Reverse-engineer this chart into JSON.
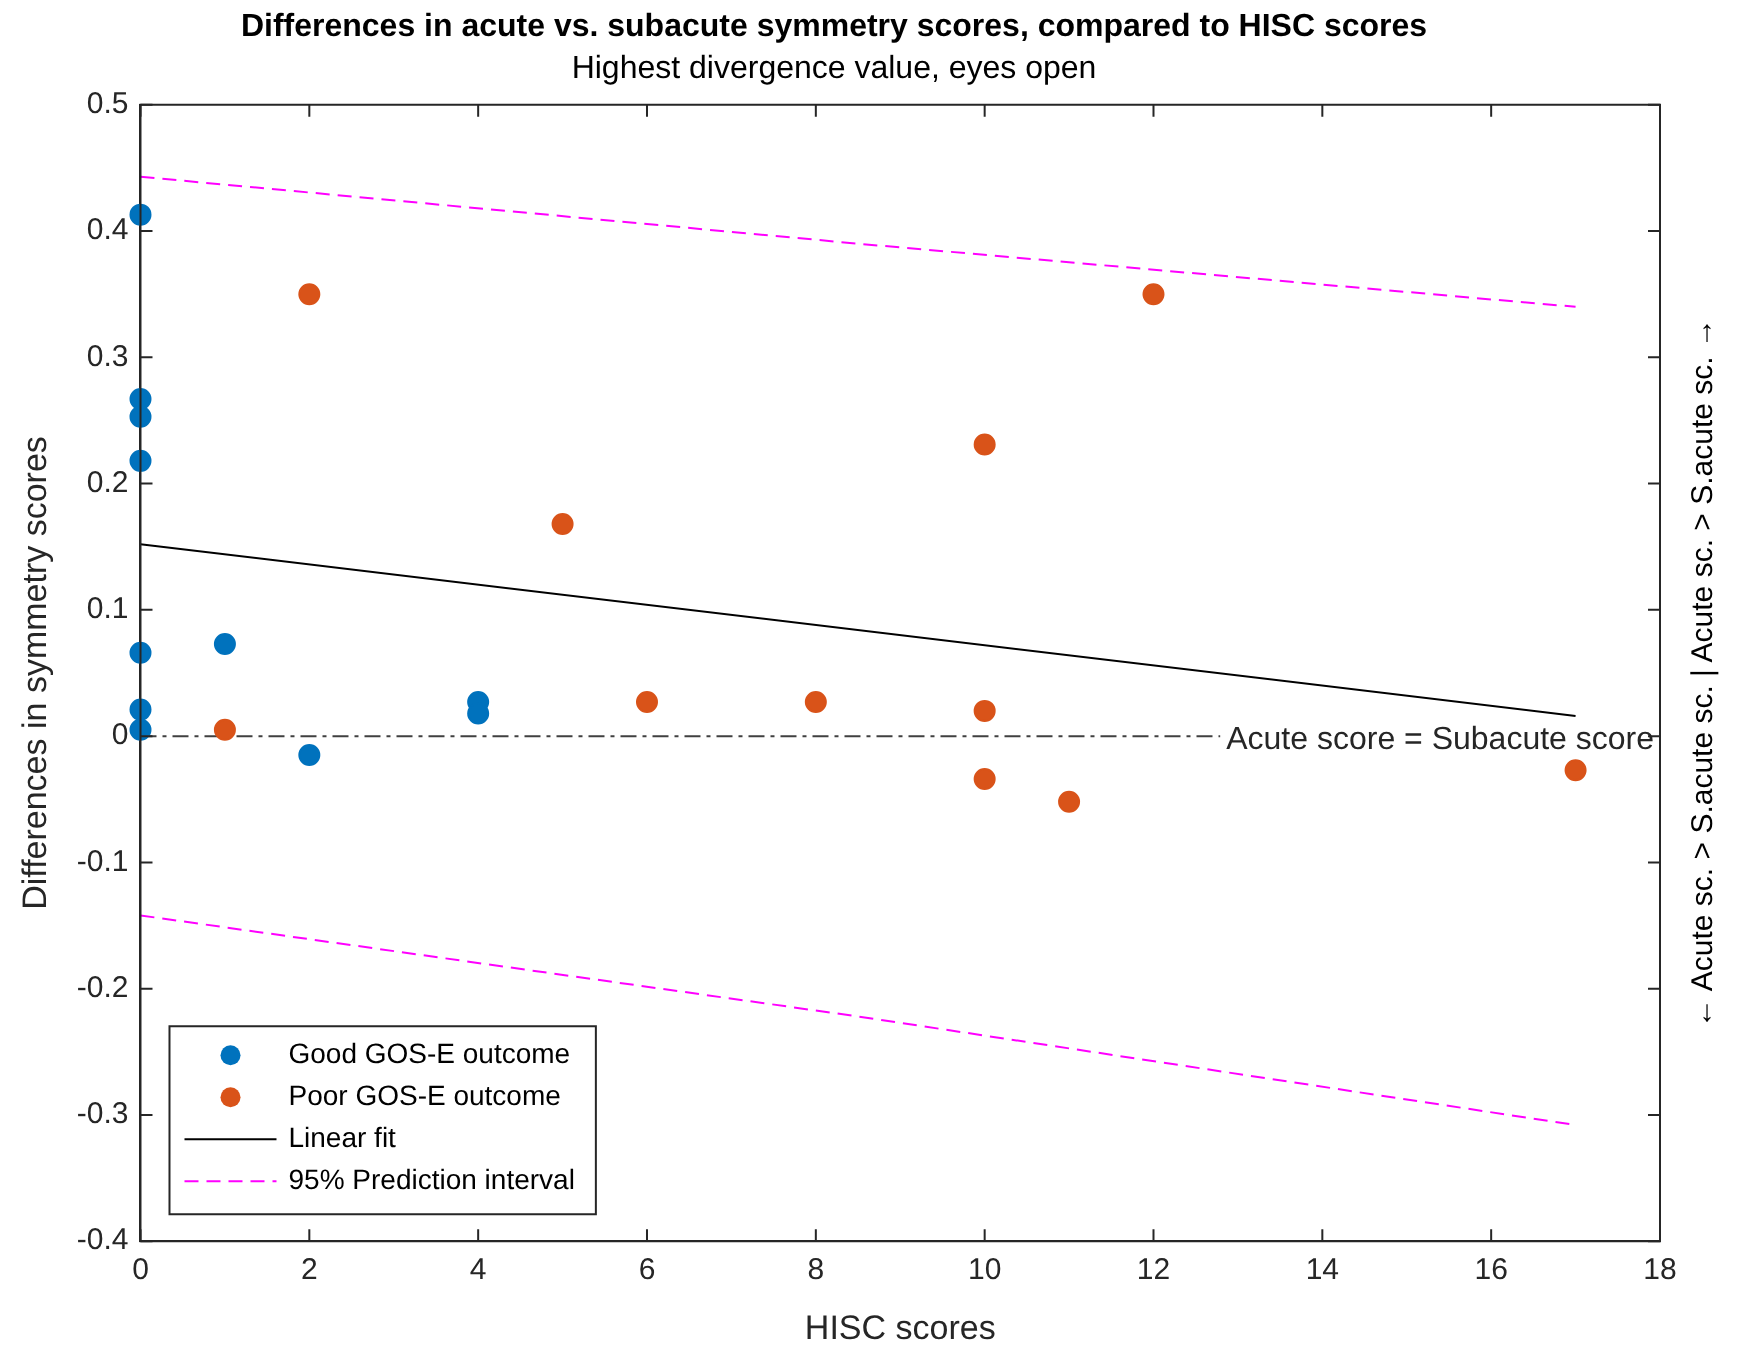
{
  "chart_data": {
    "type": "scatter",
    "title": "Differences in acute vs. subacute symmetry scores, compared to HISC scores",
    "subtitle": "Highest divergence value, eyes open",
    "xlabel": "HISC scores",
    "ylabel": "Differences in symmetry scores",
    "y2label": "← Acute sc. > S.acute sc. | Acute sc. > S.acute sc. →",
    "xlim": [
      0,
      18
    ],
    "xticks": [
      0,
      2,
      4,
      6,
      8,
      10,
      12,
      14,
      16,
      18
    ],
    "ylim": [
      -0.4,
      0.5
    ],
    "yticks": [
      -0.4,
      -0.3,
      -0.2,
      -0.1,
      0,
      0.1,
      0.2,
      0.3,
      0.4,
      0.5
    ],
    "grid": false,
    "legend": "bottom left",
    "marker": "circle",
    "series": [
      {
        "name": "Good GOS-E outcome",
        "color": "#0072bd",
        "x": [
          0,
          0,
          0,
          0,
          0,
          0,
          0,
          1,
          2,
          4,
          4
        ],
        "values": [
          0.413,
          0.267,
          0.253,
          0.218,
          0.066,
          0.021,
          0.005,
          0.073,
          -0.015,
          0.027,
          0.018
        ]
      },
      {
        "name": "Poor GOS-E outcome",
        "color": "#d95319",
        "x": [
          1,
          2,
          5,
          6,
          8,
          10,
          10,
          10,
          11,
          12,
          17
        ],
        "values": [
          0.005,
          0.35,
          0.168,
          0.027,
          0.027,
          0.231,
          0.02,
          -0.034,
          -0.052,
          0.35,
          -0.027
        ]
      },
      {
        "name": "Linear fit",
        "type": "line",
        "color": "#000000",
        "marker": "none",
        "line_style": "solid",
        "x": [
          0,
          17
        ],
        "values": [
          0.152,
          0.016
        ]
      },
      {
        "name": "95% Prediction interval",
        "type": "line",
        "color": "#ff00ff",
        "marker": "none",
        "line_style": "dashed",
        "x": [
          0,
          8.5,
          17
        ],
        "values": [
          0.443,
          0.39,
          0.34
        ]
      },
      {
        "type": "line",
        "color": "#ff00ff",
        "marker": "none",
        "line_style": "dashed",
        "x": [
          0,
          8.5,
          17
        ],
        "values": [
          -0.142,
          -0.222,
          -0.308
        ]
      }
    ],
    "ref_lines": [
      {
        "axis": "y",
        "value": 0,
        "label": "Acute score = Subacute score",
        "color": "#404040",
        "line_style": "dashdot"
      }
    ]
  }
}
